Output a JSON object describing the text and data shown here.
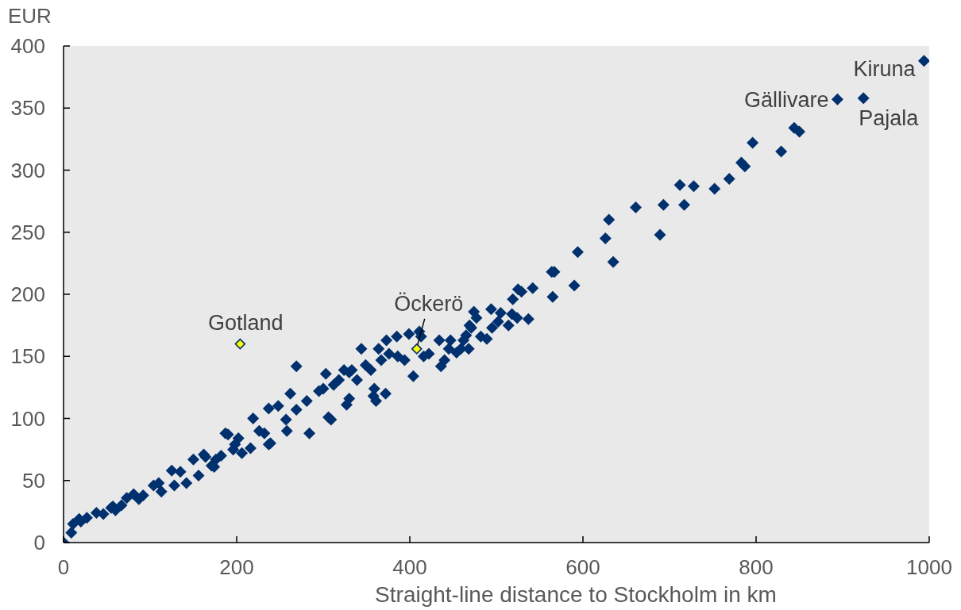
{
  "chart_data": {
    "type": "scatter",
    "xlabel": "Straight-line distance to Stockholm in km",
    "ylabel": "EUR",
    "xlim": [
      0,
      1000
    ],
    "xticks": [
      0,
      200,
      400,
      600,
      800,
      1000
    ],
    "ylim": [
      0,
      400
    ],
    "yticks": [
      0,
      50,
      100,
      150,
      200,
      250,
      300,
      350,
      400
    ],
    "marker": "diamond",
    "series": [
      {
        "color": "#00306e",
        "x": [
          0,
          9,
          11,
          18,
          20,
          27,
          38,
          46,
          55,
          57,
          60,
          67,
          73,
          81,
          87,
          92,
          104,
          110,
          113,
          125,
          128,
          135,
          142,
          150,
          156,
          162,
          164,
          171,
          174,
          176,
          182,
          187,
          190,
          196,
          198,
          202,
          206,
          216,
          219,
          226,
          232,
          237,
          237,
          239,
          248,
          257,
          258,
          262,
          269,
          269,
          281,
          284,
          295,
          300,
          303,
          306,
          309,
          312,
          318,
          324,
          327,
          330,
          330,
          333,
          339,
          344,
          349,
          355,
          358,
          359,
          361,
          364,
          367,
          372,
          373,
          376,
          385,
          386,
          394,
          399,
          404,
          411,
          413,
          416,
          422,
          434,
          436,
          440,
          445,
          447,
          454,
          459,
          462,
          465,
          468,
          469,
          471,
          474,
          477,
          482,
          489,
          494,
          495,
          502,
          505,
          514,
          518,
          519,
          524,
          525,
          529,
          537,
          542,
          564,
          565,
          567,
          590,
          594,
          626,
          630,
          635,
          661,
          689,
          693,
          712,
          717,
          728,
          752,
          769,
          783,
          787,
          796,
          829,
          844,
          850,
          894,
          924,
          994
        ],
        "values": [
          0,
          8,
          15,
          19,
          17,
          20,
          24,
          23,
          28,
          29,
          26,
          30,
          36,
          39,
          35,
          38,
          46,
          48,
          41,
          58,
          46,
          57,
          48,
          67,
          54,
          71,
          69,
          62,
          61,
          67,
          70,
          88,
          87,
          75,
          79,
          84,
          72,
          76,
          100,
          90,
          88,
          79,
          108,
          80,
          110,
          99,
          90,
          120,
          142,
          107,
          114,
          88,
          122,
          124,
          136,
          101,
          99,
          127,
          131,
          139,
          111,
          137,
          116,
          139,
          131,
          156,
          143,
          139,
          118,
          124,
          114,
          156,
          147,
          120,
          163,
          152,
          166,
          150,
          147,
          168,
          134,
          170,
          166,
          150,
          152,
          163,
          142,
          147,
          156,
          163,
          153,
          156,
          163,
          167,
          156,
          175,
          173,
          186,
          181,
          166,
          164,
          188,
          173,
          178,
          185,
          175,
          184,
          196,
          181,
          204,
          202,
          180,
          205,
          218,
          198,
          218,
          207,
          234,
          245,
          260,
          226,
          270,
          248,
          272,
          288,
          272,
          287,
          285,
          293,
          306,
          303,
          322,
          315,
          334,
          331,
          357,
          358,
          388
        ]
      },
      {
        "color": "#ffff00",
        "x": [
          204,
          408
        ],
        "values": [
          160,
          156
        ]
      }
    ],
    "annotations": [
      {
        "text": "Kiruna",
        "x": 994,
        "y": 388
      },
      {
        "text": "Gällivare",
        "x": 894,
        "y": 357
      },
      {
        "text": "Pajala",
        "x": 924,
        "y": 358
      },
      {
        "text": "Gotland",
        "x": 204,
        "y": 160
      },
      {
        "text": "Öckerö",
        "x": 408,
        "y": 156
      }
    ]
  }
}
